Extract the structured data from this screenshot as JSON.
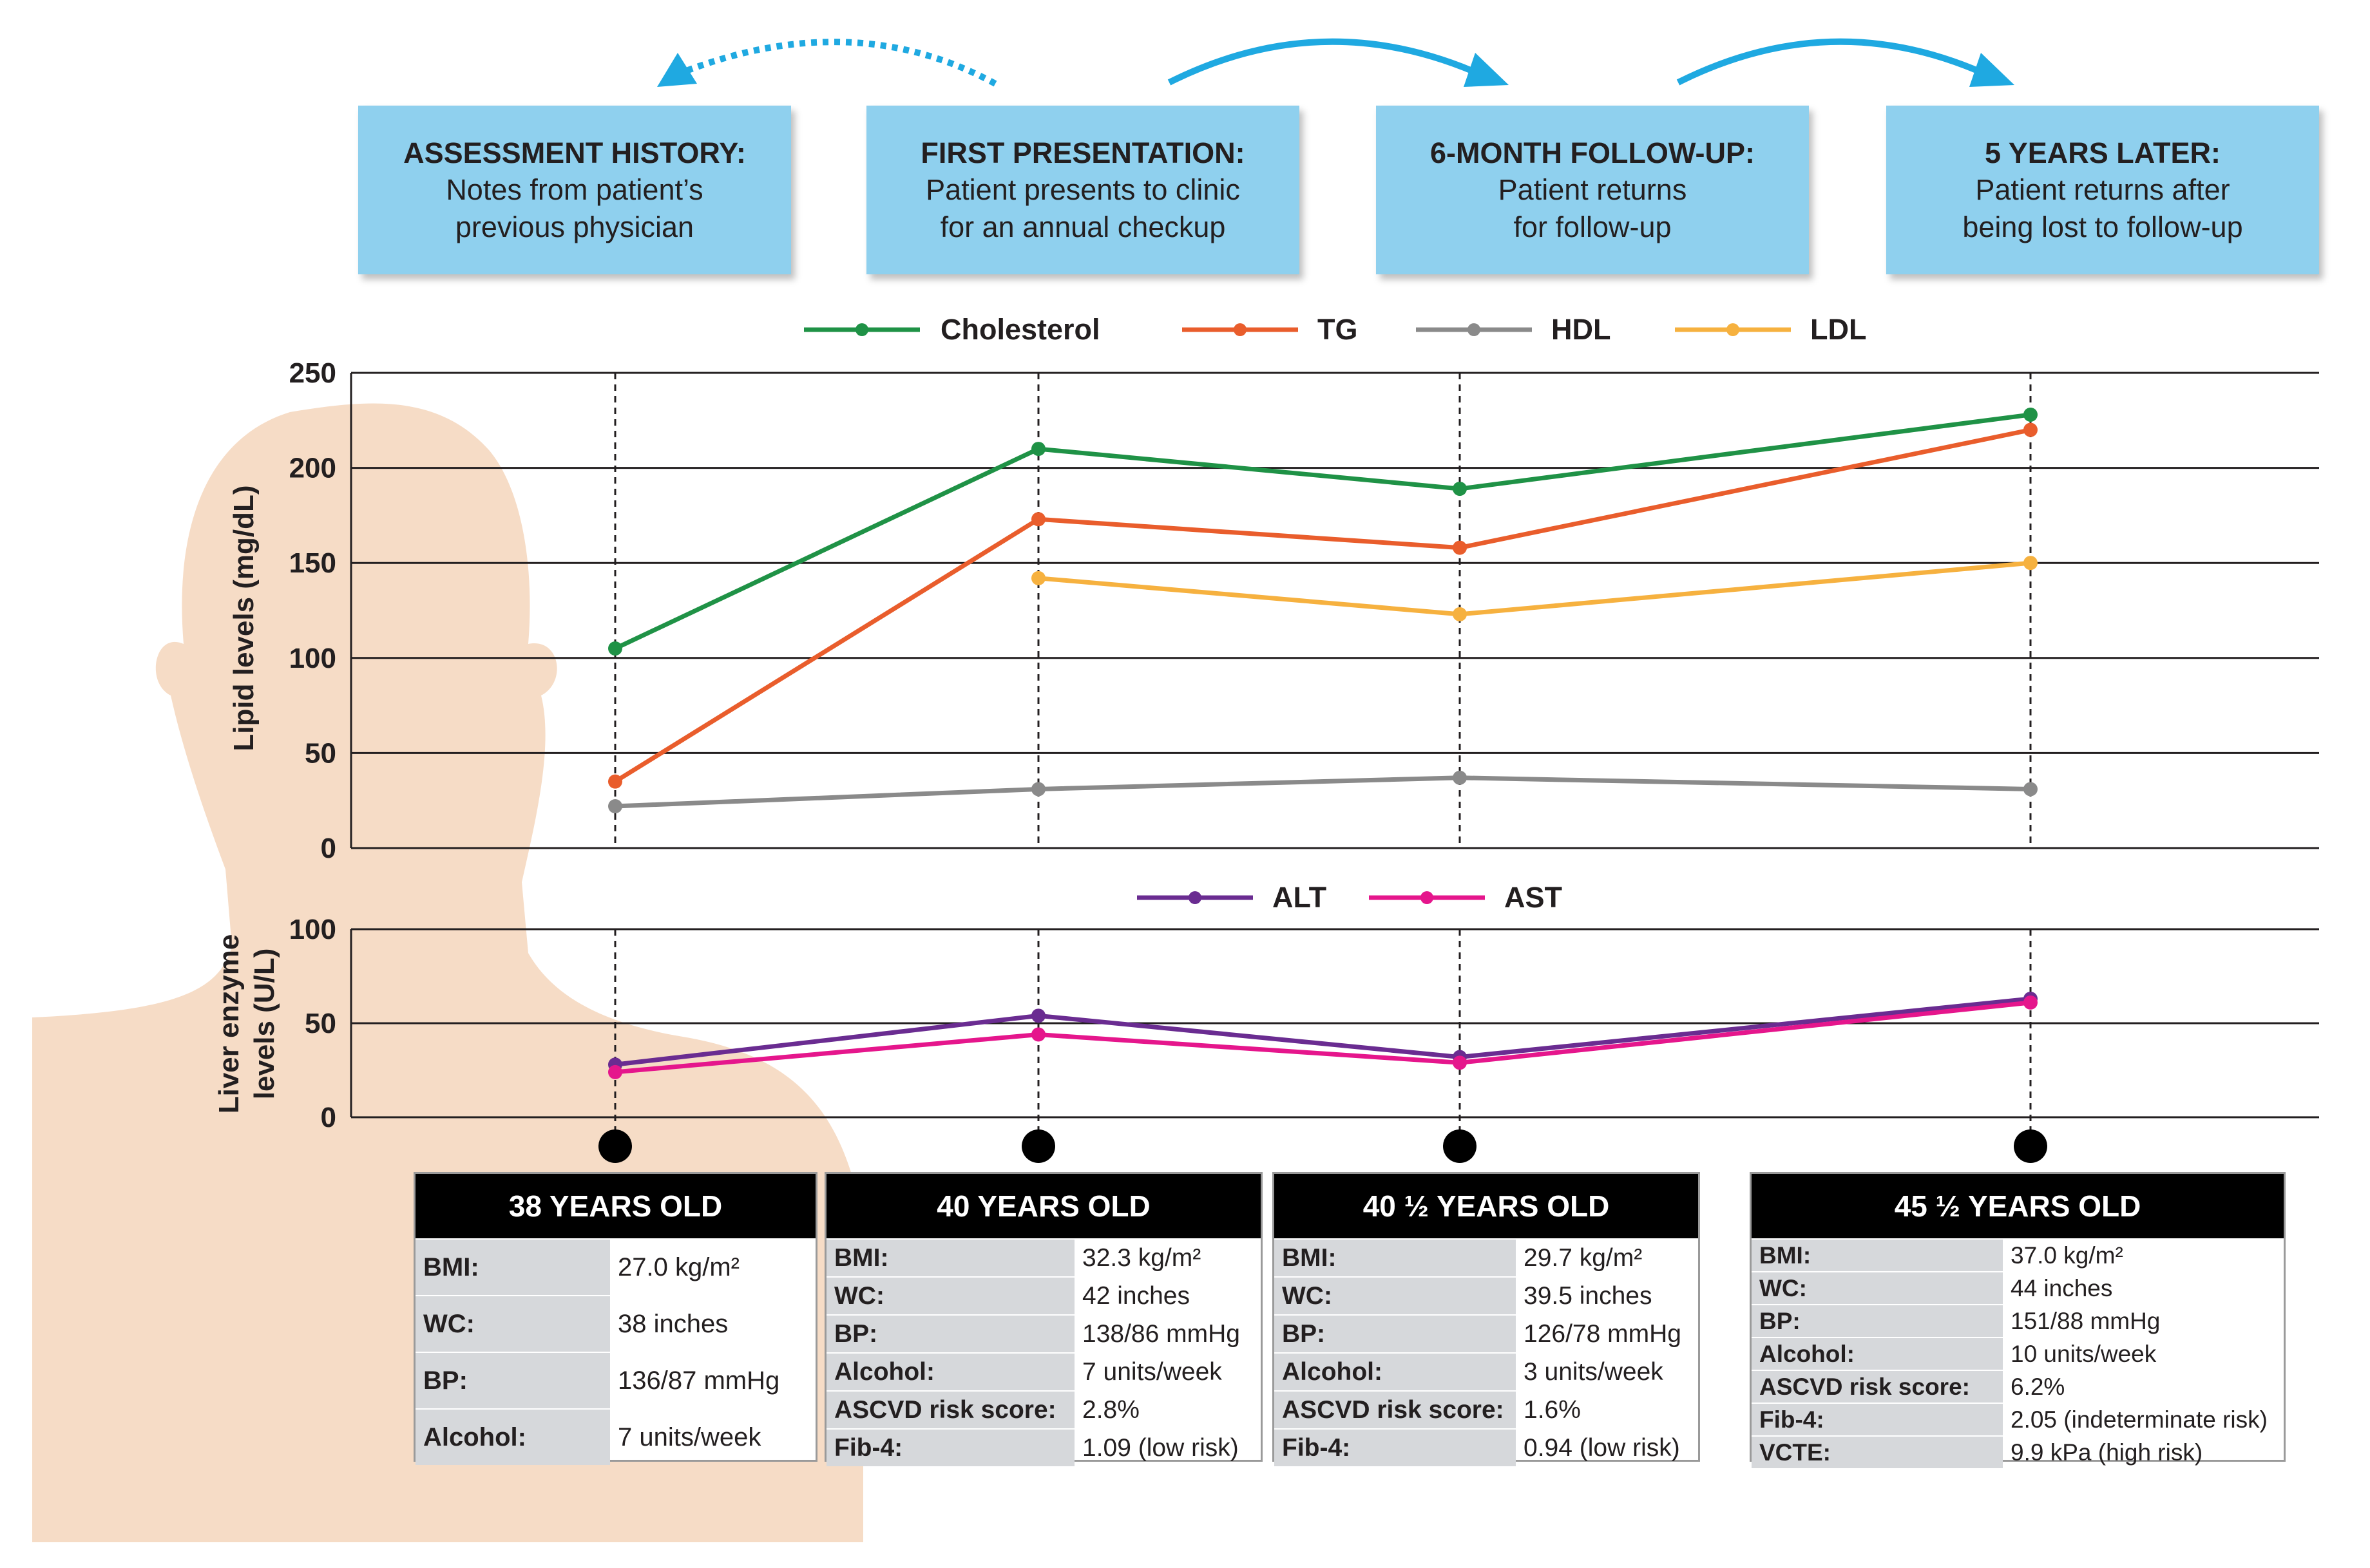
{
  "colors": {
    "cholesterol": "#1f9246",
    "tg": "#e95d2c",
    "hdl": "#8a8a8a",
    "ldl": "#f6b13f",
    "alt": "#6a2c91",
    "ast": "#e5168c",
    "arrow": "#1fa9e1",
    "box": "#8fd0ee",
    "silhouette": "#f6dcc6"
  },
  "stages": [
    {
      "title": "ASSESSMENT HISTORY:",
      "line1": "Notes from patient’s",
      "line2": "previous physician"
    },
    {
      "title": "FIRST PRESENTATION:",
      "line1": "Patient presents to clinic",
      "line2": "for an annual checkup"
    },
    {
      "title": "6-MONTH FOLLOW-UP:",
      "line1": "Patient returns",
      "line2": "for follow-up"
    },
    {
      "title": "5 YEARS LATER:",
      "line1": "Patient returns after",
      "line2": "being lost to follow-up"
    }
  ],
  "chart_data": [
    {
      "type": "line",
      "ylabel": "Lipid levels (mg/dL)",
      "ylim": [
        0,
        250
      ],
      "yticks": [
        0,
        50,
        100,
        150,
        200,
        250
      ],
      "series": [
        {
          "name": "Cholesterol",
          "color_key": "cholesterol",
          "values": [
            105,
            210,
            189,
            228
          ]
        },
        {
          "name": "TG",
          "color_key": "tg",
          "values": [
            35,
            173,
            158,
            220
          ]
        },
        {
          "name": "HDL",
          "color_key": "hdl",
          "values": [
            22,
            31,
            37,
            31
          ]
        },
        {
          "name": "LDL",
          "color_key": "ldl",
          "values": [
            null,
            142,
            123,
            150
          ]
        }
      ]
    },
    {
      "type": "line",
      "ylabel_line1": "Liver enzyme",
      "ylabel_line2": "levels (U/L)",
      "ylim": [
        0,
        100
      ],
      "yticks": [
        0,
        50,
        100
      ],
      "series": [
        {
          "name": "ALT",
          "color_key": "alt",
          "values": [
            28,
            54,
            32,
            63
          ]
        },
        {
          "name": "AST",
          "color_key": "ast",
          "values": [
            24,
            44,
            29,
            61
          ]
        }
      ]
    }
  ],
  "tables": [
    {
      "age": "38 YEARS OLD",
      "rows": [
        {
          "label": "BMI:",
          "value": "27.0 kg/m²"
        },
        {
          "label": "WC:",
          "value": "38 inches"
        },
        {
          "label": "BP:",
          "value": "136/87 mmHg"
        },
        {
          "label": "Alcohol:",
          "value": "7 units/week"
        }
      ]
    },
    {
      "age": "40 YEARS OLD",
      "rows": [
        {
          "label": "BMI:",
          "value": "32.3 kg/m²"
        },
        {
          "label": "WC:",
          "value": "42 inches"
        },
        {
          "label": "BP:",
          "value": "138/86 mmHg"
        },
        {
          "label": "Alcohol:",
          "value": "7 units/week"
        },
        {
          "label": "ASCVD risk score:",
          "value": "2.8%"
        },
        {
          "label": "Fib-4:",
          "value": "1.09 (low risk)"
        }
      ]
    },
    {
      "age": "40 ½ YEARS OLD",
      "rows": [
        {
          "label": "BMI:",
          "value": "29.7 kg/m²"
        },
        {
          "label": "WC:",
          "value": "39.5 inches"
        },
        {
          "label": "BP:",
          "value": "126/78 mmHg"
        },
        {
          "label": "Alcohol:",
          "value": "3 units/week"
        },
        {
          "label": "ASCVD risk score:",
          "value": "1.6%"
        },
        {
          "label": "Fib-4:",
          "value": "0.94 (low risk)"
        }
      ]
    },
    {
      "age": "45 ½ YEARS OLD",
      "rows": [
        {
          "label": "BMI:",
          "value": "37.0 kg/m²"
        },
        {
          "label": "WC:",
          "value": "44 inches"
        },
        {
          "label": "BP:",
          "value": "151/88 mmHg"
        },
        {
          "label": "Alcohol:",
          "value": "10 units/week"
        },
        {
          "label": "ASCVD risk score:",
          "value": "6.2%"
        },
        {
          "label": "Fib-4:",
          "value": "2.05 (indeterminate risk)"
        },
        {
          "label": "VCTE:",
          "value": "9.9 kPa (high risk)"
        }
      ]
    }
  ]
}
